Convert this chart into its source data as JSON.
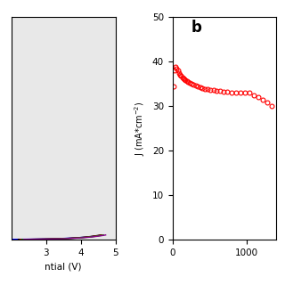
{
  "left_panel": {
    "curves": [
      {
        "color": "#0000ff",
        "onset": 1.8,
        "steepness": 1.2,
        "x_end": 4.38,
        "scale": 0.08
      },
      {
        "color": "#000000",
        "onset": 2.2,
        "steepness": 1.4,
        "x_end": 4.58,
        "scale": 0.09
      },
      {
        "color": "#cc0000",
        "onset": 2.25,
        "steepness": 1.4,
        "x_end": 4.62,
        "scale": 0.09
      },
      {
        "color": "#008800",
        "onset": 2.3,
        "steepness": 1.4,
        "x_end": 4.66,
        "scale": 0.09
      },
      {
        "color": "#880088",
        "onset": 2.35,
        "steepness": 1.4,
        "x_end": 4.72,
        "scale": 0.09
      }
    ],
    "xlabel": "ntial (V)",
    "xlim": [
      2.0,
      5.0
    ],
    "ylim": [
      0,
      120
    ],
    "xticks": [
      3,
      4,
      5
    ],
    "bg_color": "#e8e8e8"
  },
  "right_panel": {
    "label": "b",
    "x_data": [
      10,
      25,
      40,
      55,
      70,
      85,
      100,
      115,
      130,
      145,
      160,
      175,
      190,
      210,
      230,
      255,
      280,
      310,
      340,
      370,
      400,
      435,
      470,
      510,
      550,
      595,
      640,
      690,
      740,
      795,
      850,
      910,
      970,
      1030,
      1090,
      1150,
      1210,
      1270,
      1340
    ],
    "y_data": [
      34.5,
      38.0,
      38.8,
      38.5,
      38.0,
      37.5,
      37.0,
      36.8,
      36.5,
      36.3,
      36.1,
      35.9,
      35.7,
      35.5,
      35.3,
      35.1,
      34.9,
      34.7,
      34.5,
      34.3,
      34.1,
      33.9,
      33.8,
      33.7,
      33.6,
      33.5,
      33.4,
      33.3,
      33.2,
      33.1,
      33.0,
      33.0,
      33.0,
      33.0,
      32.5,
      32.0,
      31.5,
      30.8,
      30.0
    ],
    "marker_color": "#ff0000",
    "marker": "o",
    "marker_facecolor": "none",
    "ylabel": "J (mA*cm$^{-2}$)",
    "xlim": [
      0,
      1400
    ],
    "ylim": [
      0,
      50
    ],
    "yticks": [
      0,
      10,
      20,
      30,
      40,
      50
    ],
    "xticks": [
      0,
      1000
    ]
  },
  "background_color": "#ffffff"
}
